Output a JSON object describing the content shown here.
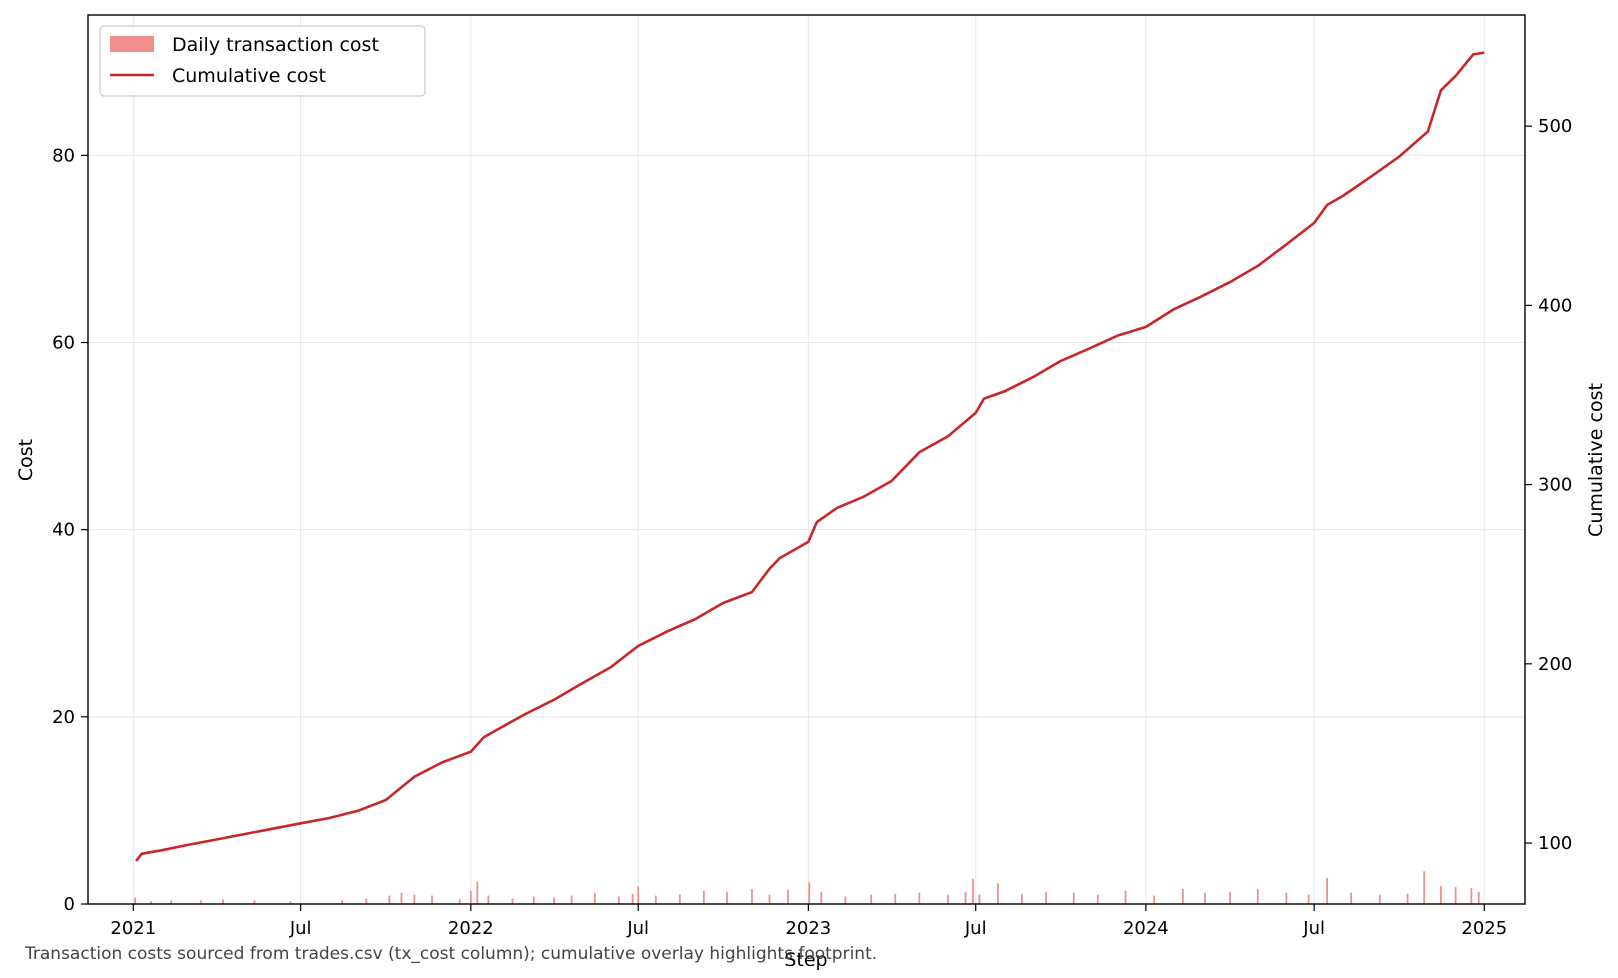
{
  "chart_data": {
    "type": "bar+line",
    "title": "",
    "xlabel": "Step",
    "ylabel": "Cost",
    "y2label": "Cumulative cost",
    "caption": "Transaction costs sourced from trades.csv (tx_cost column); cumulative overlay highlights footprint.",
    "x_range": [
      "2020-11-13",
      "2025-02-14"
    ],
    "x_ticks": [
      {
        "date": "2021-01-01",
        "label": "2021"
      },
      {
        "date": "2021-07-01",
        "label": "Jul"
      },
      {
        "date": "2022-01-01",
        "label": "2022"
      },
      {
        "date": "2022-07-01",
        "label": "Jul"
      },
      {
        "date": "2023-01-01",
        "label": "2023"
      },
      {
        "date": "2023-07-01",
        "label": "Jul"
      },
      {
        "date": "2024-01-01",
        "label": "2024"
      },
      {
        "date": "2024-07-01",
        "label": "Jul"
      },
      {
        "date": "2025-01-01",
        "label": "2025"
      }
    ],
    "ylim": [
      0,
      95
    ],
    "y_ticks": [
      0,
      20,
      40,
      60,
      80
    ],
    "y2lim": [
      66,
      562
    ],
    "y2_ticks": [
      100,
      200,
      300,
      400,
      500
    ],
    "grid": true,
    "legend_position": "top-left",
    "colors": {
      "bars": "#f28e8e",
      "line": "#c62828"
    },
    "series": [
      {
        "name": "Daily transaction cost",
        "kind": "bar",
        "axis": "left",
        "points": [
          [
            "2021-01-03",
            0.7
          ],
          [
            "2021-01-20",
            0.3
          ],
          [
            "2021-02-11",
            0.4
          ],
          [
            "2021-03-15",
            0.4
          ],
          [
            "2021-04-08",
            0.5
          ],
          [
            "2021-05-12",
            0.4
          ],
          [
            "2021-06-20",
            0.3
          ],
          [
            "2021-08-15",
            0.4
          ],
          [
            "2021-09-10",
            0.6
          ],
          [
            "2021-10-05",
            0.9
          ],
          [
            "2021-10-18",
            1.2
          ],
          [
            "2021-11-01",
            1.0
          ],
          [
            "2021-11-20",
            0.9
          ],
          [
            "2021-12-20",
            0.5
          ],
          [
            "2022-01-01",
            1.4
          ],
          [
            "2022-01-08",
            2.4
          ],
          [
            "2022-01-20",
            0.9
          ],
          [
            "2022-02-15",
            0.6
          ],
          [
            "2022-03-10",
            0.8
          ],
          [
            "2022-04-01",
            0.7
          ],
          [
            "2022-04-20",
            0.9
          ],
          [
            "2022-05-15",
            1.2
          ],
          [
            "2022-06-10",
            0.8
          ],
          [
            "2022-06-25",
            1.1
          ],
          [
            "2022-07-01",
            1.9
          ],
          [
            "2022-07-20",
            0.9
          ],
          [
            "2022-08-15",
            1.0
          ],
          [
            "2022-09-10",
            1.4
          ],
          [
            "2022-10-05",
            1.3
          ],
          [
            "2022-11-01",
            1.6
          ],
          [
            "2022-11-20",
            1.0
          ],
          [
            "2022-12-10",
            1.5
          ],
          [
            "2023-01-02",
            2.3
          ],
          [
            "2023-01-15",
            1.3
          ],
          [
            "2023-02-10",
            0.8
          ],
          [
            "2023-03-10",
            1.0
          ],
          [
            "2023-04-05",
            1.1
          ],
          [
            "2023-05-01",
            1.2
          ],
          [
            "2023-06-01",
            1.0
          ],
          [
            "2023-06-20",
            1.3
          ],
          [
            "2023-06-28",
            2.7
          ],
          [
            "2023-07-05",
            1.0
          ],
          [
            "2023-07-25",
            2.2
          ],
          [
            "2023-08-20",
            1.1
          ],
          [
            "2023-09-15",
            1.3
          ],
          [
            "2023-10-15",
            1.2
          ],
          [
            "2023-11-10",
            1.0
          ],
          [
            "2023-12-10",
            1.4
          ],
          [
            "2024-01-10",
            0.9
          ],
          [
            "2024-02-10",
            1.6
          ],
          [
            "2024-03-05",
            1.2
          ],
          [
            "2024-04-01",
            1.3
          ],
          [
            "2024-05-01",
            1.6
          ],
          [
            "2024-06-01",
            1.2
          ],
          [
            "2024-06-25",
            1.0
          ],
          [
            "2024-07-15",
            2.8
          ],
          [
            "2024-08-10",
            1.2
          ],
          [
            "2024-09-10",
            1.0
          ],
          [
            "2024-10-10",
            1.1
          ],
          [
            "2024-10-28",
            3.5
          ],
          [
            "2024-11-15",
            1.9
          ],
          [
            "2024-12-01",
            1.8
          ],
          [
            "2024-12-18",
            1.7
          ],
          [
            "2024-12-26",
            1.3
          ]
        ]
      },
      {
        "name": "Cumulative cost",
        "kind": "line",
        "axis": "right",
        "points": [
          [
            "2021-01-04",
            90
          ],
          [
            "2021-01-10",
            94
          ],
          [
            "2021-02-01",
            96
          ],
          [
            "2021-03-01",
            99
          ],
          [
            "2021-04-01",
            102
          ],
          [
            "2021-05-01",
            105
          ],
          [
            "2021-06-01",
            108
          ],
          [
            "2021-07-01",
            111
          ],
          [
            "2021-08-01",
            114
          ],
          [
            "2021-09-01",
            118
          ],
          [
            "2021-10-01",
            124
          ],
          [
            "2021-11-01",
            137
          ],
          [
            "2021-12-01",
            145
          ],
          [
            "2022-01-01",
            151
          ],
          [
            "2022-01-15",
            159
          ],
          [
            "2022-02-01",
            164
          ],
          [
            "2022-03-01",
            172
          ],
          [
            "2022-04-01",
            180
          ],
          [
            "2022-05-01",
            189
          ],
          [
            "2022-06-01",
            198
          ],
          [
            "2022-07-01",
            210
          ],
          [
            "2022-08-01",
            218
          ],
          [
            "2022-09-01",
            225
          ],
          [
            "2022-10-01",
            234
          ],
          [
            "2022-11-01",
            240
          ],
          [
            "2022-11-20",
            253
          ],
          [
            "2022-12-01",
            259
          ],
          [
            "2023-01-01",
            268
          ],
          [
            "2023-01-10",
            279
          ],
          [
            "2023-02-01",
            287
          ],
          [
            "2023-03-01",
            293
          ],
          [
            "2023-04-01",
            302
          ],
          [
            "2023-05-01",
            318
          ],
          [
            "2023-06-01",
            327
          ],
          [
            "2023-07-01",
            340
          ],
          [
            "2023-07-10",
            348
          ],
          [
            "2023-08-01",
            352
          ],
          [
            "2023-09-01",
            360
          ],
          [
            "2023-10-01",
            369
          ],
          [
            "2023-11-01",
            376
          ],
          [
            "2023-12-01",
            383
          ],
          [
            "2024-01-01",
            388
          ],
          [
            "2024-02-01",
            398
          ],
          [
            "2024-03-01",
            405
          ],
          [
            "2024-04-01",
            413
          ],
          [
            "2024-05-01",
            422
          ],
          [
            "2024-06-01",
            434
          ],
          [
            "2024-07-01",
            446
          ],
          [
            "2024-07-15",
            456
          ],
          [
            "2024-08-01",
            461
          ],
          [
            "2024-09-01",
            472
          ],
          [
            "2024-10-01",
            483
          ],
          [
            "2024-11-01",
            497
          ],
          [
            "2024-11-15",
            520
          ],
          [
            "2024-12-01",
            528
          ],
          [
            "2024-12-20",
            540
          ],
          [
            "2025-01-01",
            541
          ]
        ]
      }
    ]
  }
}
